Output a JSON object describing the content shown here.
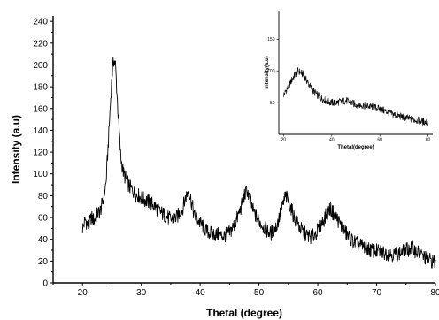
{
  "chart_data": [
    {
      "type": "line",
      "title": "",
      "xlabel": "Thetal (degree)",
      "ylabel": "Intensity (a.u)",
      "xlim": [
        15,
        80
      ],
      "ylim": [
        0,
        245
      ],
      "xticks": [
        20,
        30,
        40,
        50,
        60,
        70,
        80
      ],
      "yticks": [
        0,
        20,
        40,
        60,
        80,
        100,
        120,
        140,
        160,
        180,
        200,
        220,
        240
      ],
      "grid": false,
      "legend": "none",
      "series": [
        {
          "color": "#000000",
          "points": [
            [
              20,
              50
            ],
            [
              20.5,
              58
            ],
            [
              21,
              52
            ],
            [
              21.5,
              60
            ],
            [
              22,
              57
            ],
            [
              22.5,
              63
            ],
            [
              23,
              66
            ],
            [
              23.5,
              75
            ],
            [
              24,
              92
            ],
            [
              24.5,
              140
            ],
            [
              25,
              190
            ],
            [
              25.3,
              205
            ],
            [
              25.6,
              200
            ],
            [
              26,
              160
            ],
            [
              26.5,
              115
            ],
            [
              27,
              100
            ],
            [
              28,
              88
            ],
            [
              29,
              82
            ],
            [
              30,
              78
            ],
            [
              31,
              75
            ],
            [
              32,
              72
            ],
            [
              33,
              66
            ],
            [
              34,
              62
            ],
            [
              35,
              58
            ],
            [
              36,
              60
            ],
            [
              37,
              68
            ],
            [
              37.5,
              78
            ],
            [
              38,
              85
            ],
            [
              38.5,
              75
            ],
            [
              39,
              62
            ],
            [
              40,
              55
            ],
            [
              41,
              48
            ],
            [
              42,
              45
            ],
            [
              43,
              44
            ],
            [
              44,
              43
            ],
            [
              45,
              46
            ],
            [
              46,
              55
            ],
            [
              47,
              70
            ],
            [
              47.5,
              80
            ],
            [
              48,
              85
            ],
            [
              48.5,
              76
            ],
            [
              49,
              66
            ],
            [
              50,
              57
            ],
            [
              51,
              50
            ],
            [
              52,
              45
            ],
            [
              53,
              52
            ],
            [
              54,
              70
            ],
            [
              54.5,
              80
            ],
            [
              55,
              75
            ],
            [
              56,
              60
            ],
            [
              57,
              50
            ],
            [
              58,
              44
            ],
            [
              59,
              42
            ],
            [
              60,
              48
            ],
            [
              61,
              58
            ],
            [
              62,
              68
            ],
            [
              63,
              62
            ],
            [
              64,
              52
            ],
            [
              65,
              44
            ],
            [
              66,
              38
            ],
            [
              67,
              35
            ],
            [
              68,
              33
            ],
            [
              69,
              30
            ],
            [
              70,
              29
            ],
            [
              71,
              28
            ],
            [
              72,
              27
            ],
            [
              73,
              26
            ],
            [
              74,
              27
            ],
            [
              75,
              30
            ],
            [
              76,
              32
            ],
            [
              77,
              28
            ],
            [
              78,
              24
            ],
            [
              79,
              21
            ],
            [
              80,
              19
            ]
          ]
        }
      ]
    },
    {
      "type": "line",
      "title": "",
      "xlabel": "Thetal(degree)",
      "ylabel": "Intensity(a.u)",
      "xlim": [
        18,
        82
      ],
      "ylim": [
        0,
        195
      ],
      "xticks": [
        20,
        40,
        60,
        80
      ],
      "yticks": [
        50,
        100,
        150
      ],
      "grid": false,
      "legend": "none",
      "series": [
        {
          "color": "#000000",
          "points": [
            [
              20,
              62
            ],
            [
              22,
              75
            ],
            [
              24,
              90
            ],
            [
              26,
              100
            ],
            [
              28,
              95
            ],
            [
              30,
              82
            ],
            [
              32,
              70
            ],
            [
              34,
              62
            ],
            [
              36,
              56
            ],
            [
              38,
              52
            ],
            [
              40,
              50
            ],
            [
              42,
              50
            ],
            [
              44,
              52
            ],
            [
              46,
              53
            ],
            [
              48,
              50
            ],
            [
              50,
              47
            ],
            [
              52,
              46
            ],
            [
              54,
              45
            ],
            [
              56,
              44
            ],
            [
              58,
              42
            ],
            [
              60,
              40
            ],
            [
              62,
              37
            ],
            [
              64,
              34
            ],
            [
              66,
              31
            ],
            [
              68,
              29
            ],
            [
              70,
              27
            ],
            [
              72,
              25
            ],
            [
              74,
              23
            ],
            [
              76,
              22
            ],
            [
              78,
              20
            ],
            [
              80,
              19
            ]
          ]
        }
      ]
    }
  ]
}
